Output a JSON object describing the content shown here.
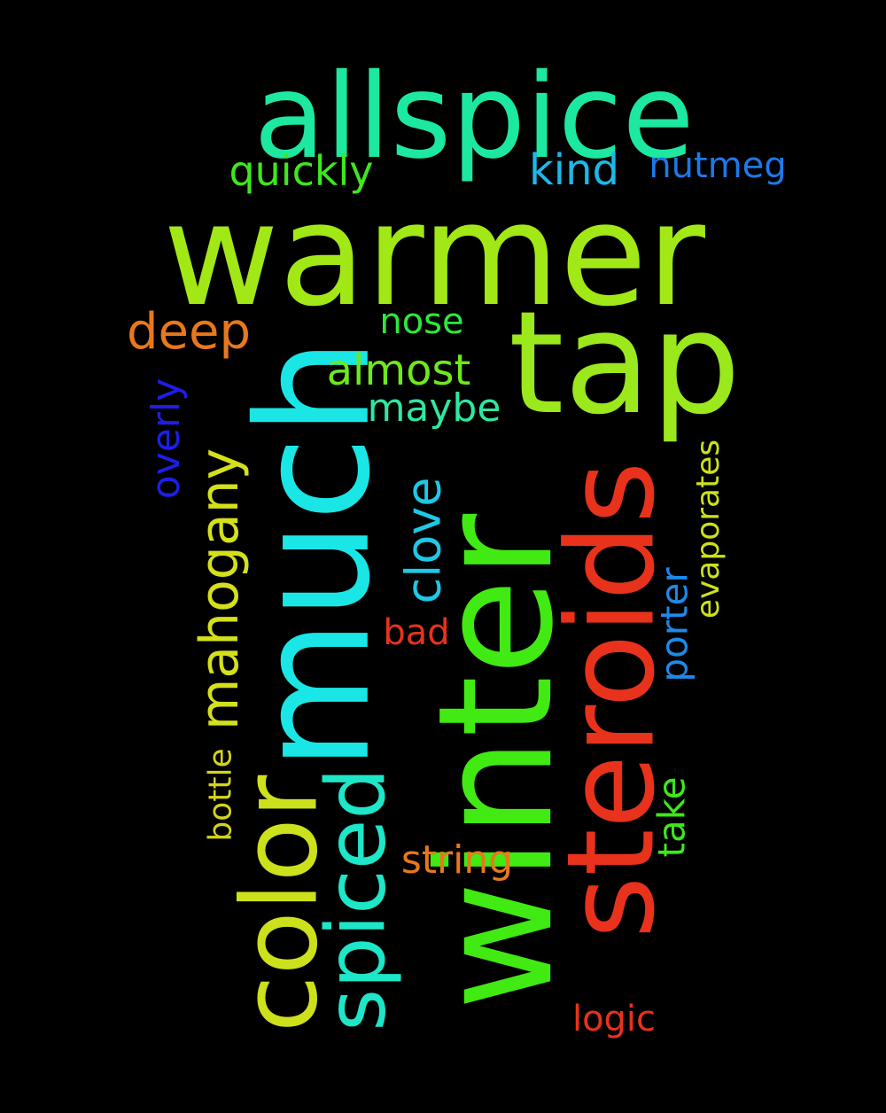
{
  "words": [
    {
      "key": "allspice",
      "text": "allspice",
      "color": "#1de8a0"
    },
    {
      "key": "warmer",
      "text": "warmer",
      "color": "#a2e816"
    },
    {
      "key": "tap",
      "text": "tap",
      "color": "#9be81c"
    },
    {
      "key": "much",
      "text": "much",
      "color": "#1ae6e6"
    },
    {
      "key": "winter",
      "text": "winter",
      "color": "#41ea12"
    },
    {
      "key": "steroids",
      "text": "steroids",
      "color": "#e8321c"
    },
    {
      "key": "color",
      "text": "color",
      "color": "#cde01c"
    },
    {
      "key": "spiced",
      "text": "spiced",
      "color": "#1ee6c8"
    },
    {
      "key": "mahogany",
      "text": "mahogany",
      "color": "#d4e01a"
    },
    {
      "key": "clove",
      "text": "clove",
      "color": "#1ec8e6"
    },
    {
      "key": "quickly",
      "text": "quickly",
      "color": "#3ee81c"
    },
    {
      "key": "kind",
      "text": "kind",
      "color": "#1eb8e8"
    },
    {
      "key": "nutmeg",
      "text": "nutmeg",
      "color": "#1e78e8"
    },
    {
      "key": "deep",
      "text": "deep",
      "color": "#e8781c"
    },
    {
      "key": "nose",
      "text": "nose",
      "color": "#2ee838"
    },
    {
      "key": "almost",
      "text": "almost",
      "color": "#6ee81c"
    },
    {
      "key": "maybe",
      "text": "maybe",
      "color": "#2ee8a0"
    },
    {
      "key": "overly",
      "text": "overly",
      "color": "#1e1ee8"
    },
    {
      "key": "porter",
      "text": "porter",
      "color": "#1e8ae8"
    },
    {
      "key": "evaporates",
      "text": "evaporates",
      "color": "#cde01c"
    },
    {
      "key": "bad",
      "text": "bad",
      "color": "#e8321c"
    },
    {
      "key": "bottle",
      "text": "bottle",
      "color": "#d4d41a"
    },
    {
      "key": "take",
      "text": "take",
      "color": "#3ee81c"
    },
    {
      "key": "string",
      "text": "string",
      "color": "#e8781c"
    },
    {
      "key": "logic",
      "text": "logic",
      "color": "#e8321c"
    }
  ]
}
